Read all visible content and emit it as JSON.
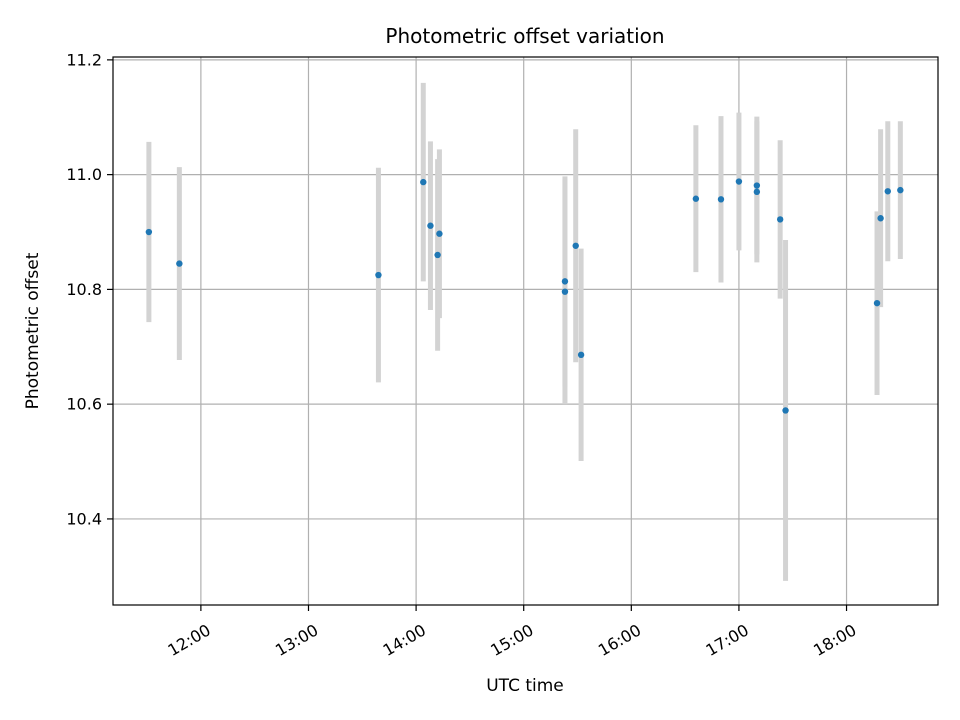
{
  "chart_data": {
    "type": "scatter",
    "title": "Photometric offset variation",
    "xlabel": "UTC time",
    "ylabel": "Photometric offset",
    "x_ticks": [
      "12:00",
      "13:00",
      "14:00",
      "15:00",
      "16:00",
      "17:00",
      "18:00"
    ],
    "y_ticks": [
      "10.4",
      "10.6",
      "10.8",
      "11.0",
      "11.2"
    ],
    "x_range": [
      "11:11",
      "18:51"
    ],
    "ylim": [
      10.25,
      11.205
    ],
    "grid": true,
    "errorbar_color": "#d3d3d3",
    "point_color": "#1f77b4",
    "points": [
      {
        "x": "11:31",
        "y": 10.9,
        "err": 0.157
      },
      {
        "x": "11:48",
        "y": 10.845,
        "err": 0.168
      },
      {
        "x": "13:39",
        "y": 10.825,
        "err": 0.187
      },
      {
        "x": "14:04",
        "y": 10.987,
        "err": 0.173
      },
      {
        "x": "14:08",
        "y": 10.911,
        "err": 0.147
      },
      {
        "x": "14:12",
        "y": 10.86,
        "err": 0.167
      },
      {
        "x": "14:13",
        "y": 10.897,
        "err": 0.147
      },
      {
        "x": "15:23",
        "y": 10.814,
        "err": 0.183
      },
      {
        "x": "15:23",
        "y": 10.796,
        "err": 0.196
      },
      {
        "x": "15:29",
        "y": 10.876,
        "err": 0.203
      },
      {
        "x": "15:32",
        "y": 10.686,
        "err": 0.185
      },
      {
        "x": "16:36",
        "y": 10.958,
        "err": 0.128
      },
      {
        "x": "16:50",
        "y": 10.957,
        "err": 0.145
      },
      {
        "x": "17:00",
        "y": 10.988,
        "err": 0.12
      },
      {
        "x": "17:10",
        "y": 10.981,
        "err": 0.12
      },
      {
        "x": "17:10",
        "y": 10.97,
        "err": 0.123
      },
      {
        "x": "17:23",
        "y": 10.922,
        "err": 0.138
      },
      {
        "x": "17:26",
        "y": 10.589,
        "err": 0.297
      },
      {
        "x": "18:17",
        "y": 10.776,
        "err": 0.16
      },
      {
        "x": "18:19",
        "y": 10.924,
        "err": 0.155
      },
      {
        "x": "18:23",
        "y": 10.971,
        "err": 0.122
      },
      {
        "x": "18:30",
        "y": 10.973,
        "err": 0.12
      }
    ]
  }
}
